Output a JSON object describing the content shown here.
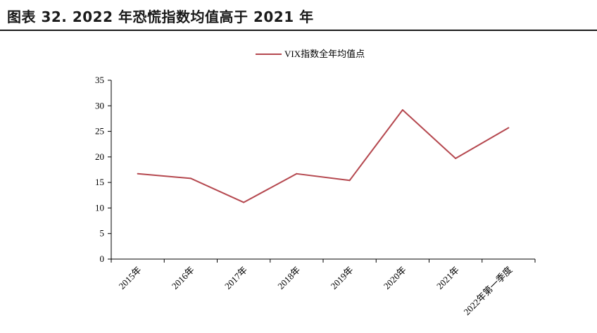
{
  "header": {
    "title": "图表 32. 2022 年恐慌指数均值高于 2021 年"
  },
  "chart_data": {
    "type": "line",
    "categories": [
      "2015年",
      "2016年",
      "2017年",
      "2018年",
      "2019年",
      "2020年",
      "2021年",
      "2022年第一季度"
    ],
    "series": [
      {
        "name": "VIX指数全年均值点",
        "values": [
          16.7,
          15.8,
          11.1,
          16.7,
          15.4,
          29.2,
          19.7,
          25.7
        ],
        "color": "#b5484f"
      }
    ],
    "yticks": [
      "0",
      "5",
      "10",
      "15",
      "20",
      "25",
      "30",
      "35"
    ],
    "ylim": [
      0,
      35
    ],
    "legend_position": "top-center",
    "grid": false
  }
}
